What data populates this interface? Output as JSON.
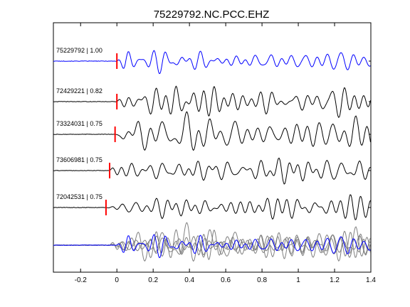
{
  "chart_data": {
    "type": "line",
    "title": "75229792.NC.PCC.EHZ",
    "xlabel": "",
    "ylabel": "",
    "xlim": [
      -0.35,
      1.4
    ],
    "xticks": [
      -0.2,
      0,
      0.2,
      0.4,
      0.6,
      0.8,
      1,
      1.2,
      1.4
    ],
    "xtick_labels": [
      "-0.2",
      "0",
      "0.2",
      "0.4",
      "0.6",
      "0.8",
      "1",
      "1.2",
      "1.4"
    ],
    "grid": false,
    "series": [
      {
        "name": "75229792 | 1.00",
        "label": "75229792 | 1.00",
        "color": "#0000ff",
        "pick_time": 0.0
      },
      {
        "name": "72429221 | 0.82",
        "label": "72429221 | 0.82",
        "color": "#000000",
        "pick_time": 0.0
      },
      {
        "name": "73324031 | 0.75",
        "label": "73324031 | 0.75",
        "color": "#000000",
        "pick_time": -0.01
      },
      {
        "name": "73606981 | 0.75",
        "label": "73606981 | 0.75",
        "color": "#000000",
        "pick_time": -0.04
      },
      {
        "name": "72042531 | 0.75",
        "label": "72042531 | 0.75",
        "color": "#000000",
        "pick_time": -0.06
      }
    ],
    "stack": {
      "colors": [
        "#808080",
        "#0000ff"
      ]
    },
    "pick_color": "#ff0000"
  }
}
